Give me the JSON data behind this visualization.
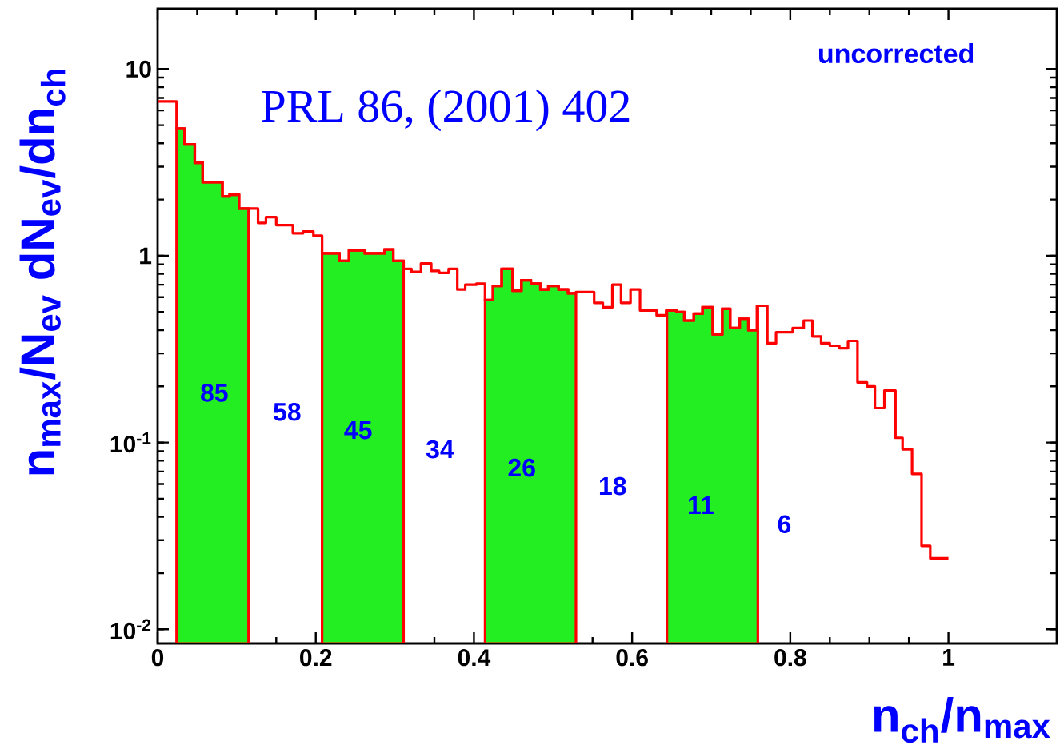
{
  "chart_data": {
    "type": "step",
    "color": "#ff0000",
    "xlabel": "n$_{ch}$/n$_{max}$",
    "ylabel": "n$_{max}$/N$_{ev}$   dN$_{ev}$/dn$_{ch}$",
    "log": "y",
    "xlim": [
      0,
      1.137
    ],
    "ylim": [
      0.0084,
      21
    ],
    "xticks": [
      0,
      0.2,
      0.4,
      0.6,
      0.8,
      1
    ],
    "yticks": [
      {
        "value": 0.01,
        "label": "10$^{-2}$"
      },
      {
        "value": 0.1,
        "label": "10$^{-1}$"
      },
      1,
      10
    ],
    "x": [
      0,
      0.024,
      0.034,
      0.047,
      0.057,
      0.082,
      0.091,
      0.103,
      0.127,
      0.137,
      0.15,
      0.171,
      0.184,
      0.197,
      0.208,
      0.23,
      0.242,
      0.262,
      0.287,
      0.298,
      0.311,
      0.321,
      0.333,
      0.346,
      0.356,
      0.368,
      0.379,
      0.389,
      0.403,
      0.414,
      0.424,
      0.435,
      0.449,
      0.46,
      0.472,
      0.484,
      0.494,
      0.507,
      0.519,
      0.529,
      0.552,
      0.563,
      0.575,
      0.586,
      0.598,
      0.61,
      0.631,
      0.643,
      0.656,
      0.666,
      0.678,
      0.689,
      0.702,
      0.714,
      0.724,
      0.736,
      0.747,
      0.758,
      0.771,
      0.782,
      0.803,
      0.817,
      0.828,
      0.839,
      0.85,
      0.862,
      0.873,
      0.885,
      0.897,
      0.907,
      0.919,
      0.933,
      0.942,
      0.954,
      0.966,
      0.977,
      1.0
    ],
    "values": [
      6.7,
      4.8,
      3.95,
      3.15,
      2.48,
      2.08,
      2.12,
      1.79,
      1.5,
      1.61,
      1.46,
      1.32,
      1.35,
      1.28,
      1.03,
      0.94,
      1.07,
      1.03,
      1.08,
      0.94,
      0.85,
      0.82,
      0.91,
      0.83,
      0.81,
      0.85,
      0.66,
      0.7,
      0.71,
      0.58,
      0.69,
      0.85,
      0.65,
      0.74,
      0.71,
      0.66,
      0.69,
      0.66,
      0.63,
      0.64,
      0.56,
      0.53,
      0.7,
      0.56,
      0.66,
      0.51,
      0.48,
      0.51,
      0.5,
      0.45,
      0.49,
      0.53,
      0.38,
      0.52,
      0.41,
      0.46,
      0.4,
      0.54,
      0.34,
      0.39,
      0.41,
      0.45,
      0.37,
      0.34,
      0.33,
      0.32,
      0.35,
      0.21,
      0.2,
      0.153,
      0.19,
      0.106,
      0.092,
      0.068,
      0.028,
      0.024,
      0.024
    ],
    "bands": [
      {
        "axis": "x",
        "from": 0.024,
        "to": 0.115,
        "color": "#22ee22"
      },
      {
        "axis": "x",
        "from": 0.208,
        "to": 0.311,
        "color": "#22ee22"
      },
      {
        "axis": "x",
        "from": 0.414,
        "to": 0.529,
        "color": "#22ee22"
      },
      {
        "axis": "x",
        "from": 0.644,
        "to": 0.759,
        "color": "#22ee22"
      }
    ],
    "annotations": [
      "uncorrected",
      "PRL 86, (2001) 402",
      "85",
      "58",
      "45",
      "34",
      "26",
      "18",
      "11",
      "6"
    ]
  }
}
